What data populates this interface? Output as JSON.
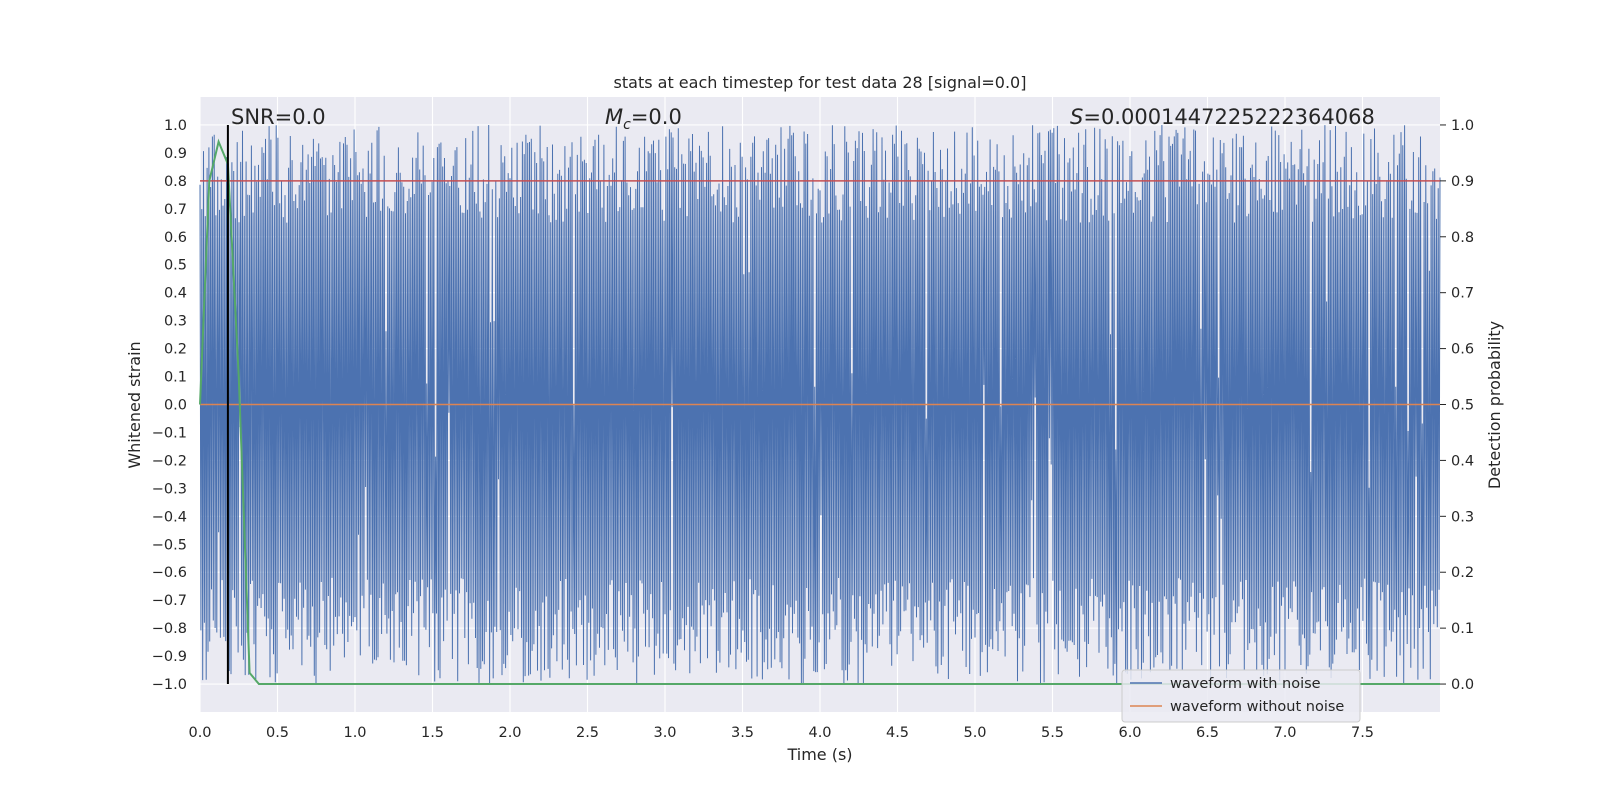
{
  "chart_data": {
    "type": "line",
    "title": "stats at each timestep for test data 28 [signal=0.0]",
    "xlabel": "Time (s)",
    "ylabel": "Whitened strain",
    "y2label": "Detection probability",
    "xlim": [
      0.0,
      8.0
    ],
    "ylim": [
      -1.1,
      1.1
    ],
    "y2lim": [
      -0.05,
      1.05
    ],
    "x_ticks": [
      "0.0",
      "0.5",
      "1.0",
      "1.5",
      "2.0",
      "2.5",
      "3.0",
      "3.5",
      "4.0",
      "4.5",
      "5.0",
      "5.5",
      "6.0",
      "6.5",
      "7.0",
      "7.5"
    ],
    "y_ticks": [
      "1.0",
      "0.9",
      "0.8",
      "0.7",
      "0.6",
      "0.5",
      "0.4",
      "0.3",
      "0.2",
      "0.1",
      "0.0",
      "−0.1",
      "−0.2",
      "−0.3",
      "−0.4",
      "−0.5",
      "−0.6",
      "−0.7",
      "−0.8",
      "−0.9",
      "−1.0"
    ],
    "y2_ticks": [
      "1.0",
      "0.9",
      "0.8",
      "0.7",
      "0.6",
      "0.5",
      "0.4",
      "0.3",
      "0.2",
      "0.1",
      "0.0"
    ],
    "grid": true,
    "legend_position": "lower-right",
    "annotations": {
      "snr": "SNR=0.0",
      "mc_symbol": "M",
      "mc_sub": "c",
      "mc_value": "=0.0",
      "s_symbol": "S",
      "s_value": "=0.0001447225222364068"
    },
    "series": [
      {
        "name": "waveform with noise",
        "axis": "left",
        "color": "#4c72b0",
        "description_range": [
          -1.0,
          1.0
        ]
      },
      {
        "name": "waveform without noise",
        "axis": "left",
        "color": "#dd8452",
        "x": [
          0.0,
          8.0
        ],
        "y": [
          0.0,
          0.0
        ]
      },
      {
        "axis": "right",
        "color": "#55a868",
        "x": [
          0.0,
          0.06,
          0.12,
          0.18,
          0.25,
          0.32,
          0.38,
          0.5,
          8.0
        ],
        "y": [
          0.5,
          0.9,
          0.97,
          0.93,
          0.55,
          0.02,
          0.0,
          0.0,
          0.0
        ]
      },
      {
        "axis": "right",
        "color": "#c44e52",
        "x": [
          0.0,
          8.0
        ],
        "y": [
          0.9,
          0.9
        ]
      }
    ],
    "vline": {
      "x": 0.18,
      "color": "#000000"
    }
  },
  "legend": {
    "items": [
      {
        "label": "waveform with noise",
        "color": "#4c72b0"
      },
      {
        "label": "waveform without noise",
        "color": "#dd8452"
      }
    ]
  }
}
